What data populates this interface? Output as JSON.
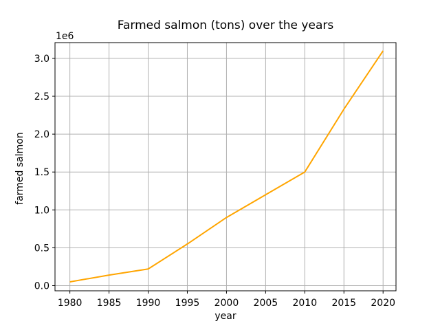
{
  "figure": {
    "background": "#ffffff"
  },
  "colors": {
    "line": "#FFA500",
    "grid": "#b0b0b0",
    "spine": "#000000",
    "text": "#000000"
  },
  "chart_data": {
    "type": "line",
    "title": "Farmed salmon (tons) over the years",
    "xlabel": "year",
    "ylabel": "farmed salmon",
    "y_offset_label": "1e6",
    "x": [
      1980,
      1985,
      1990,
      1995,
      2000,
      2005,
      2010,
      2015,
      2020
    ],
    "values": [
      50000,
      140000,
      220000,
      550000,
      900000,
      1200000,
      1500000,
      2330000,
      3100000
    ],
    "series_name": "farmed salmon (tons)",
    "xticks": [
      1980,
      1985,
      1990,
      1995,
      2000,
      2005,
      2010,
      2015,
      2020
    ],
    "xtick_labels": [
      "1980",
      "1985",
      "1990",
      "1995",
      "2000",
      "2005",
      "2010",
      "2015",
      "2020"
    ],
    "yticks": [
      0,
      500000,
      1000000,
      1500000,
      2000000,
      2500000,
      3000000
    ],
    "ytick_labels": [
      "0.0",
      "0.5",
      "1.0",
      "1.5",
      "2.0",
      "2.5",
      "3.0"
    ],
    "xlim": [
      1978.1,
      2021.65
    ],
    "ylim": [
      -68000,
      3208000
    ],
    "grid": true,
    "legend": null
  }
}
